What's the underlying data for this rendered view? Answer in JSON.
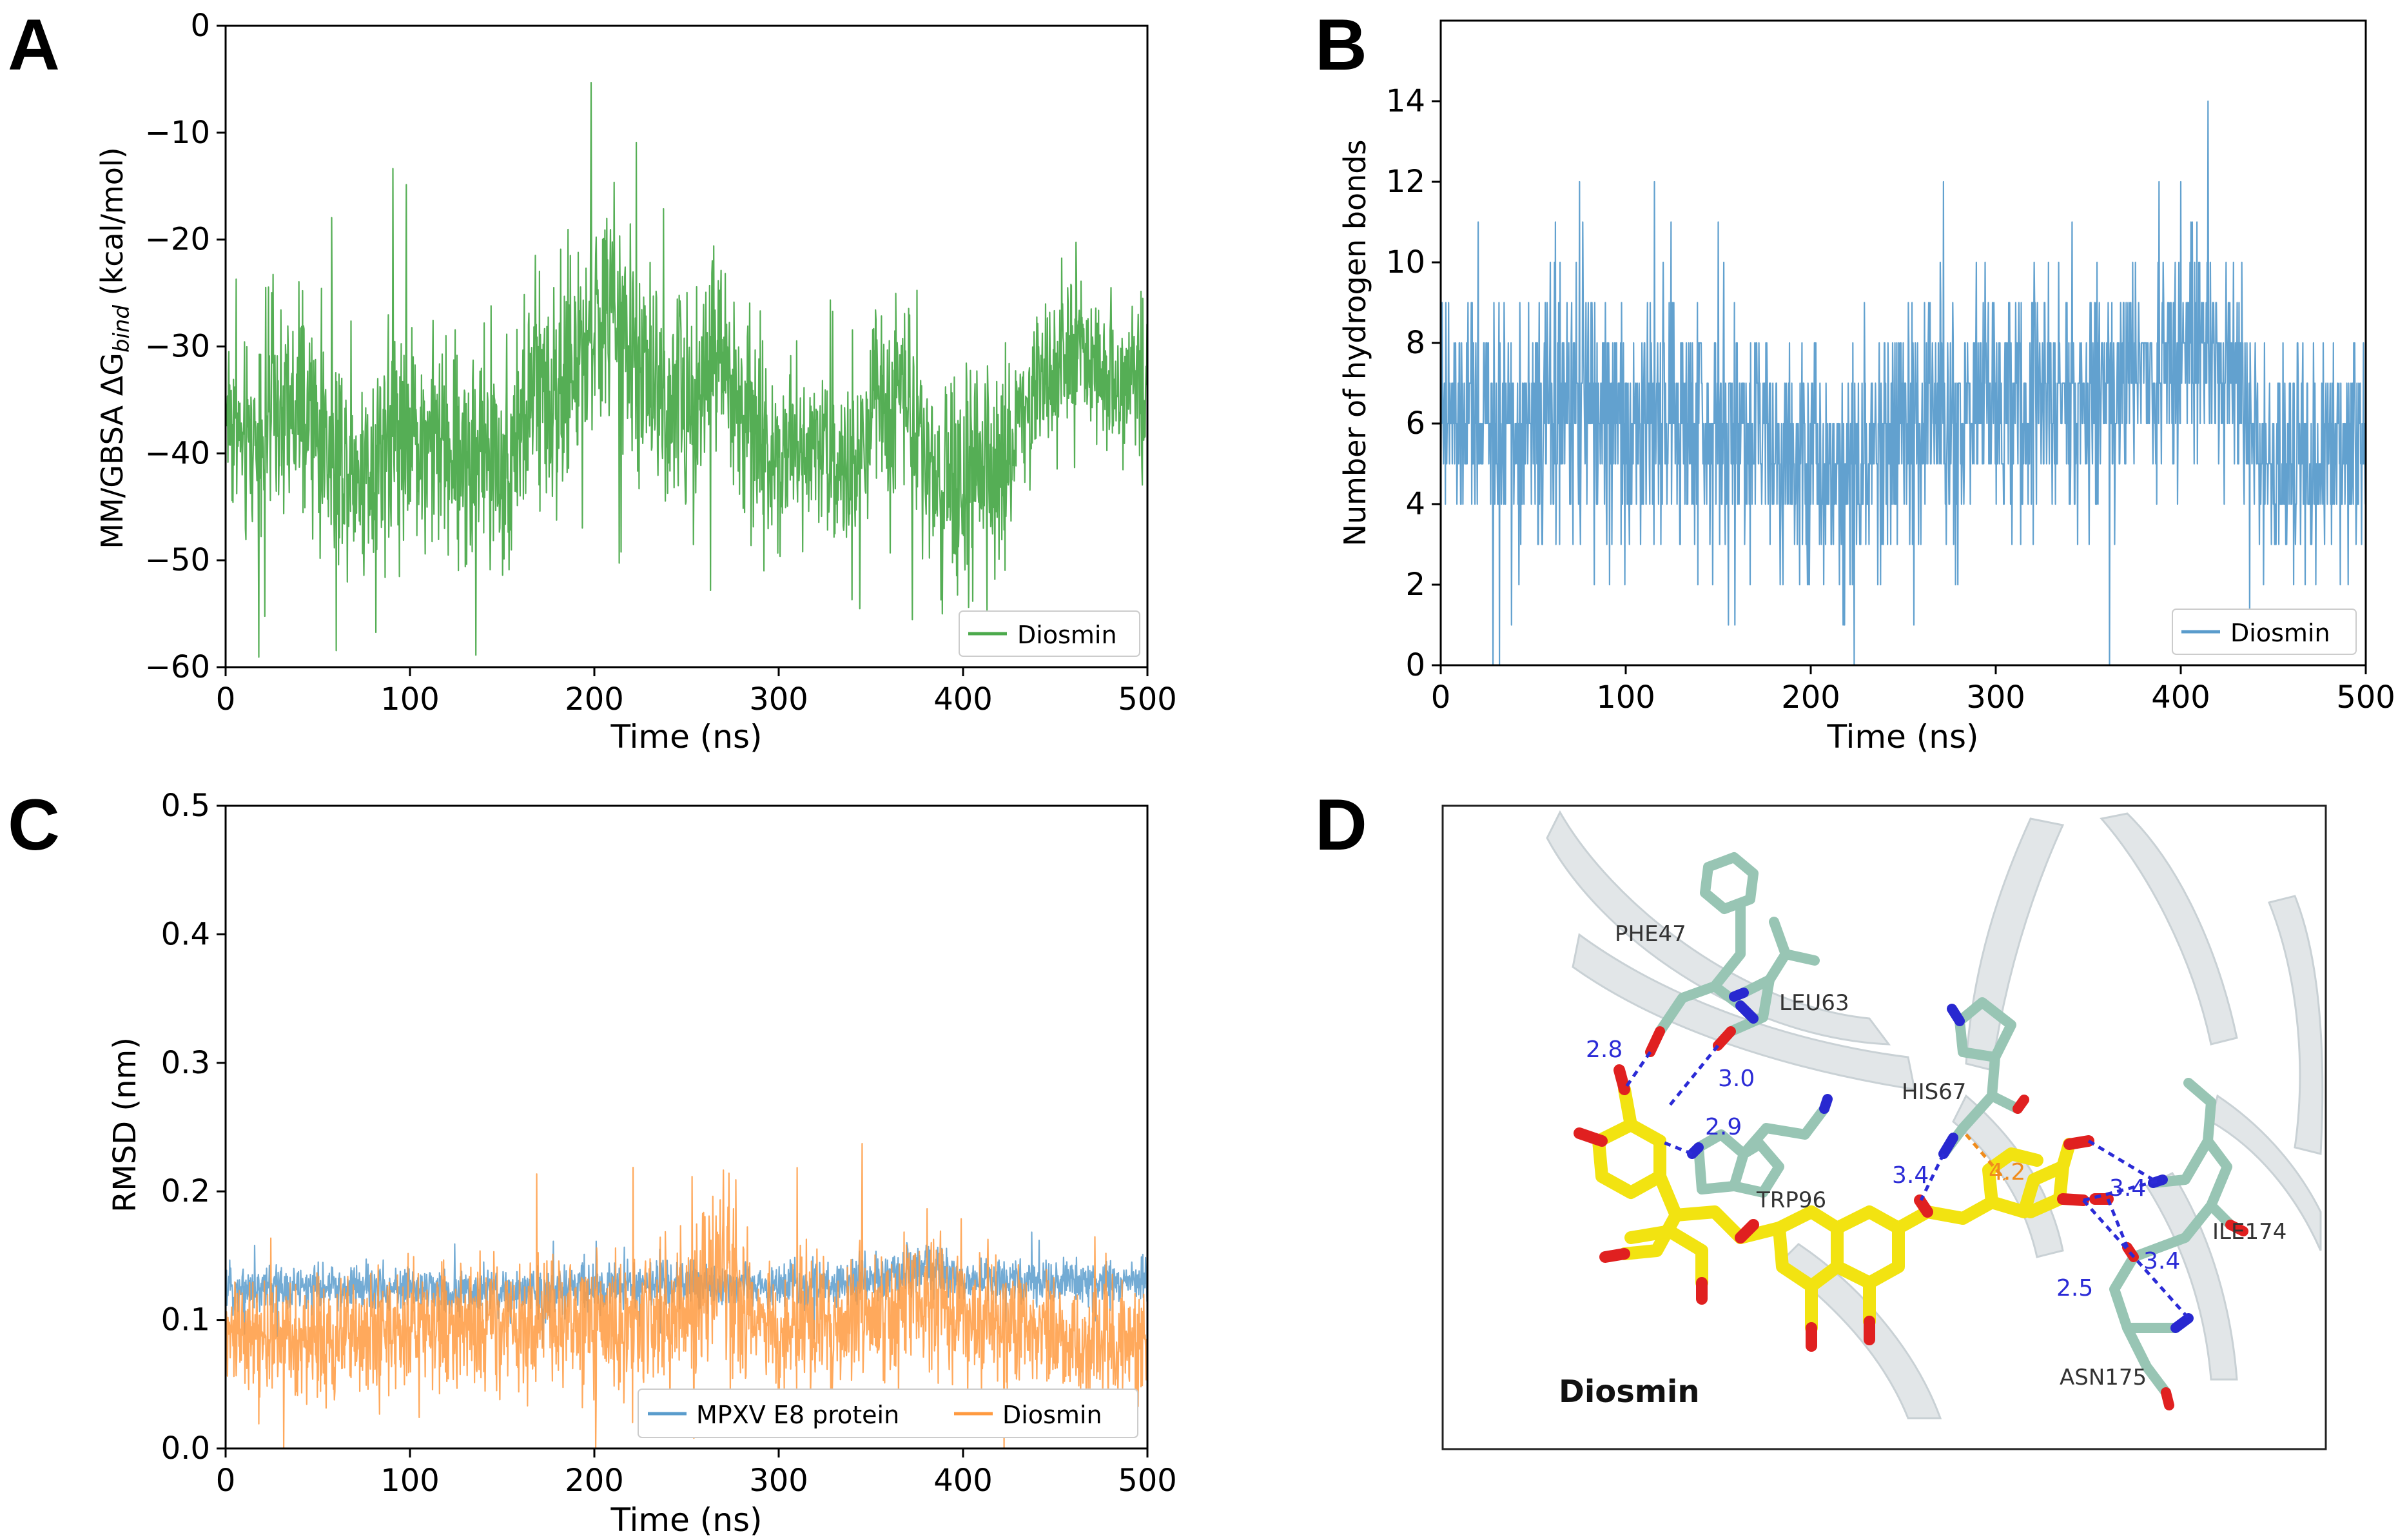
{
  "panels": {
    "A": {
      "letter": "A"
    },
    "B": {
      "letter": "B"
    },
    "C": {
      "letter": "C"
    },
    "D": {
      "letter": "D"
    }
  },
  "colors": {
    "green": "#4caa4c",
    "blue": "#5a9ccc",
    "orange": "#ff9a40",
    "ligand": "#f2e311",
    "residue": "#98c5b4",
    "hbond": "#2b2bd6",
    "pistack": "#f08c1c",
    "oxygen": "#e02020",
    "nitrogen": "#2828d0"
  },
  "chart_data": [
    {
      "panel": "A",
      "type": "line",
      "title": "",
      "xlabel": "Time (ns)",
      "ylabel_prefix": "MM/GBSA ΔG",
      "ylabel_sub": "bind",
      "ylabel_suffix": " (kcal/mol)",
      "xlim": [
        0,
        500
      ],
      "ylim": [
        -60,
        0
      ],
      "xticks": [
        0,
        100,
        200,
        300,
        400,
        500
      ],
      "yticks": [
        -60,
        -50,
        -40,
        -30,
        -20,
        -10,
        0
      ],
      "legend_position": "lower right",
      "series": [
        {
          "name": "Diosmin",
          "color": "#4caa4c",
          "x": [
            0,
            10,
            25,
            50,
            75,
            90,
            100,
            125,
            150,
            170,
            185,
            200,
            210,
            225,
            250,
            265,
            280,
            300,
            320,
            340,
            355,
            370,
            385,
            400,
            420,
            430,
            445,
            460,
            480,
            500
          ],
          "y": [
            -35,
            -40,
            -36,
            -38,
            -42,
            -37,
            -38,
            -40,
            -41,
            -34,
            -33,
            -28,
            -27,
            -33,
            -36,
            -30,
            -37,
            -40,
            -38,
            -43,
            -35,
            -33,
            -43,
            -44,
            -42,
            -37,
            -32,
            -30,
            -33,
            -33
          ],
          "fluct": [
            7,
            8,
            9,
            9,
            8,
            10,
            8,
            9,
            9,
            10,
            10,
            8,
            9,
            9,
            9,
            10,
            9,
            7,
            6,
            7,
            8,
            8,
            9,
            9,
            8,
            7,
            7,
            7,
            6,
            7
          ]
        }
      ]
    },
    {
      "panel": "B",
      "type": "line",
      "title": "",
      "xlabel": "Time (ns)",
      "ylabel": "Number of hydrogen bonds",
      "xlim": [
        0,
        500
      ],
      "ylim": [
        0,
        16
      ],
      "xticks": [
        0,
        100,
        200,
        300,
        400,
        500
      ],
      "yticks": [
        0,
        2,
        4,
        6,
        8,
        10,
        12,
        14
      ],
      "legend_position": "lower right",
      "series": [
        {
          "name": "Diosmin",
          "color": "#5a9ccc",
          "x": [
            0,
            25,
            50,
            75,
            100,
            125,
            150,
            175,
            200,
            225,
            250,
            275,
            300,
            325,
            350,
            375,
            400,
            415,
            430,
            450,
            475,
            500
          ],
          "y": [
            6,
            6,
            6,
            6.5,
            6,
            6,
            6,
            6,
            5,
            5,
            6,
            6.5,
            6.5,
            6.5,
            6.5,
            7,
            7.5,
            8,
            6.5,
            5,
            5,
            5
          ],
          "fluct": [
            2.5,
            2.5,
            2.5,
            2.5,
            2.6,
            2.5,
            2.5,
            2.5,
            2.5,
            2.5,
            2.5,
            2.5,
            2.4,
            2.5,
            2.5,
            2.5,
            2.6,
            2.5,
            2.5,
            2.4,
            2.4,
            2.4
          ]
        }
      ]
    },
    {
      "panel": "C",
      "type": "line",
      "title": "",
      "xlabel": "Time (ns)",
      "ylabel": "RMSD (nm)",
      "xlim": [
        0,
        500
      ],
      "ylim": [
        0,
        0.5
      ],
      "xticks": [
        0,
        100,
        200,
        300,
        400,
        500
      ],
      "yticks": [
        0.0,
        0.1,
        0.2,
        0.3,
        0.4,
        0.5
      ],
      "legend_position": "lower right",
      "series": [
        {
          "name": "MPXV E8 protein",
          "color": "#5a9ccc",
          "x": [
            0,
            50,
            100,
            150,
            200,
            250,
            300,
            350,
            380,
            400,
            450,
            500
          ],
          "y": [
            0.125,
            0.125,
            0.125,
            0.12,
            0.125,
            0.128,
            0.125,
            0.13,
            0.14,
            0.13,
            0.13,
            0.13
          ],
          "fluct": [
            0.015,
            0.015,
            0.015,
            0.015,
            0.015,
            0.015,
            0.014,
            0.016,
            0.016,
            0.015,
            0.015,
            0.015
          ]
        },
        {
          "name": "Diosmin",
          "color": "#ff9a40",
          "x": [
            0,
            50,
            100,
            150,
            200,
            250,
            270,
            300,
            350,
            380,
            400,
            450,
            500
          ],
          "y": [
            0.09,
            0.085,
            0.09,
            0.095,
            0.1,
            0.11,
            0.14,
            0.09,
            0.1,
            0.12,
            0.1,
            0.09,
            0.08
          ],
          "fluct": [
            0.035,
            0.04,
            0.04,
            0.04,
            0.045,
            0.05,
            0.07,
            0.04,
            0.045,
            0.05,
            0.04,
            0.04,
            0.035
          ]
        }
      ]
    }
  ],
  "structure": {
    "ligand_label": "Diosmin",
    "residue_labels": [
      "PHE47",
      "LEU63",
      "HIS67",
      "TRP96",
      "ILE174",
      "ASN175"
    ],
    "distance_labels": [
      "2.8",
      "3.0",
      "2.9",
      "3.4",
      "4.2",
      "3.4",
      "3.4",
      "2.5"
    ]
  }
}
